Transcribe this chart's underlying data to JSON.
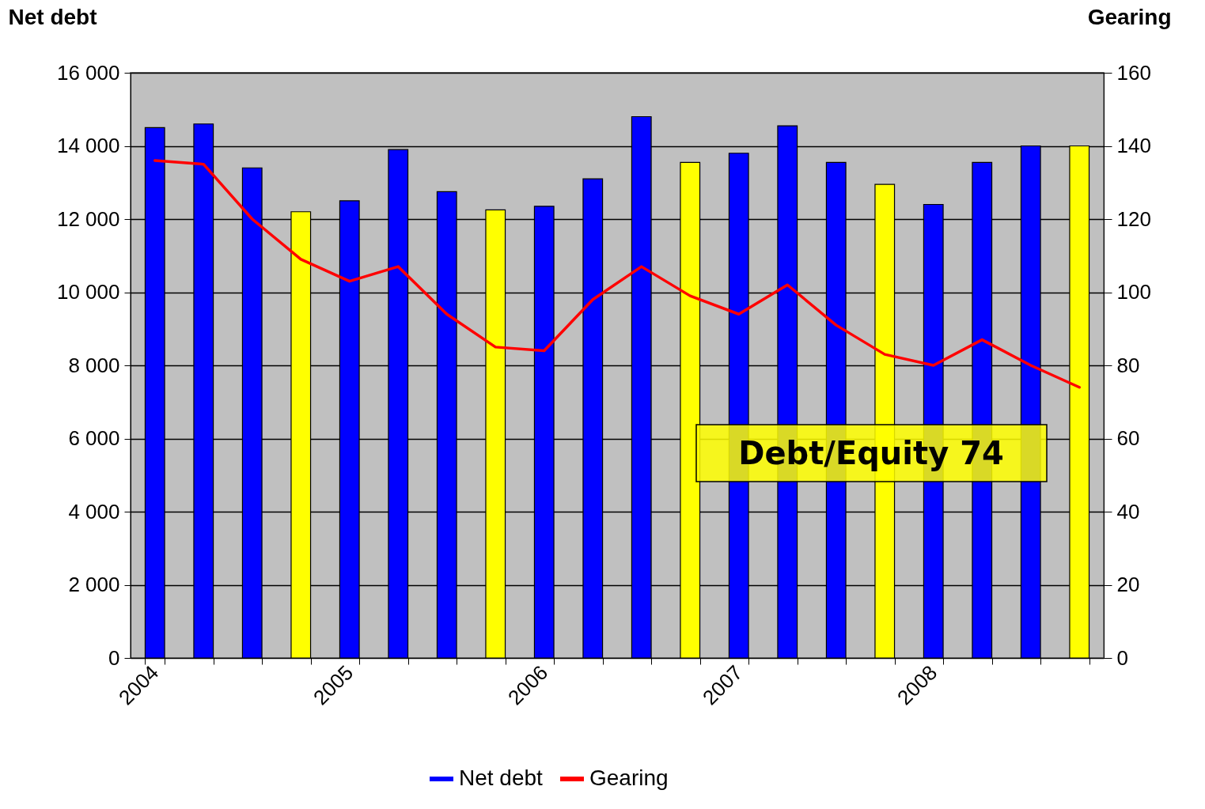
{
  "chart_data": {
    "type": "bar",
    "ylabel": "Net debt",
    "y2label": "Gearing",
    "categories": [
      "2004",
      null,
      null,
      null,
      "2005",
      null,
      null,
      null,
      "2006",
      null,
      null,
      null,
      "2007",
      null,
      null,
      null,
      "2008",
      null,
      null,
      null
    ],
    "series": [
      {
        "name": "Net debt",
        "color": "#0000ff",
        "colors": [
          "#0000ff",
          "#0000ff",
          "#0000ff",
          "#ffff00",
          "#0000ff",
          "#0000ff",
          "#0000ff",
          "#ffff00",
          "#0000ff",
          "#0000ff",
          "#0000ff",
          "#ffff00",
          "#0000ff",
          "#0000ff",
          "#0000ff",
          "#ffff00",
          "#0000ff",
          "#0000ff",
          "#0000ff",
          "#ffff00"
        ],
        "values": [
          14500,
          14600,
          13400,
          12200,
          12500,
          13900,
          12750,
          12250,
          12350,
          13100,
          14800,
          13550,
          13800,
          14550,
          13550,
          12950,
          12400,
          13550,
          14000,
          14000
        ]
      },
      {
        "name": "Gearing",
        "type": "line",
        "axis": "y2",
        "color": "#ff0000",
        "values": [
          136,
          135,
          120,
          109,
          103,
          107,
          94,
          85,
          84,
          98,
          107,
          99,
          94,
          102,
          91,
          83,
          80,
          87,
          80,
          74
        ]
      }
    ],
    "ylim": [
      0,
      16000
    ],
    "yticks": [
      0,
      {
        "value": 2000,
        "label": "2 000"
      },
      {
        "value": 4000,
        "label": "4 000"
      },
      {
        "value": 6000,
        "label": "6 000"
      },
      {
        "value": 8000,
        "label": "8 000"
      },
      {
        "value": 10000,
        "label": "10 000"
      },
      {
        "value": 12000,
        "label": "12 000"
      },
      {
        "value": 14000,
        "label": "14 000"
      },
      {
        "value": 16000,
        "label": "16 000"
      }
    ],
    "y2lim": [
      0,
      160
    ],
    "y2ticks": [
      0,
      20,
      40,
      60,
      80,
      100,
      120,
      140,
      160
    ],
    "grid": "y",
    "legend": "bottom",
    "annotations": [
      "Debt/Equity 74"
    ]
  }
}
